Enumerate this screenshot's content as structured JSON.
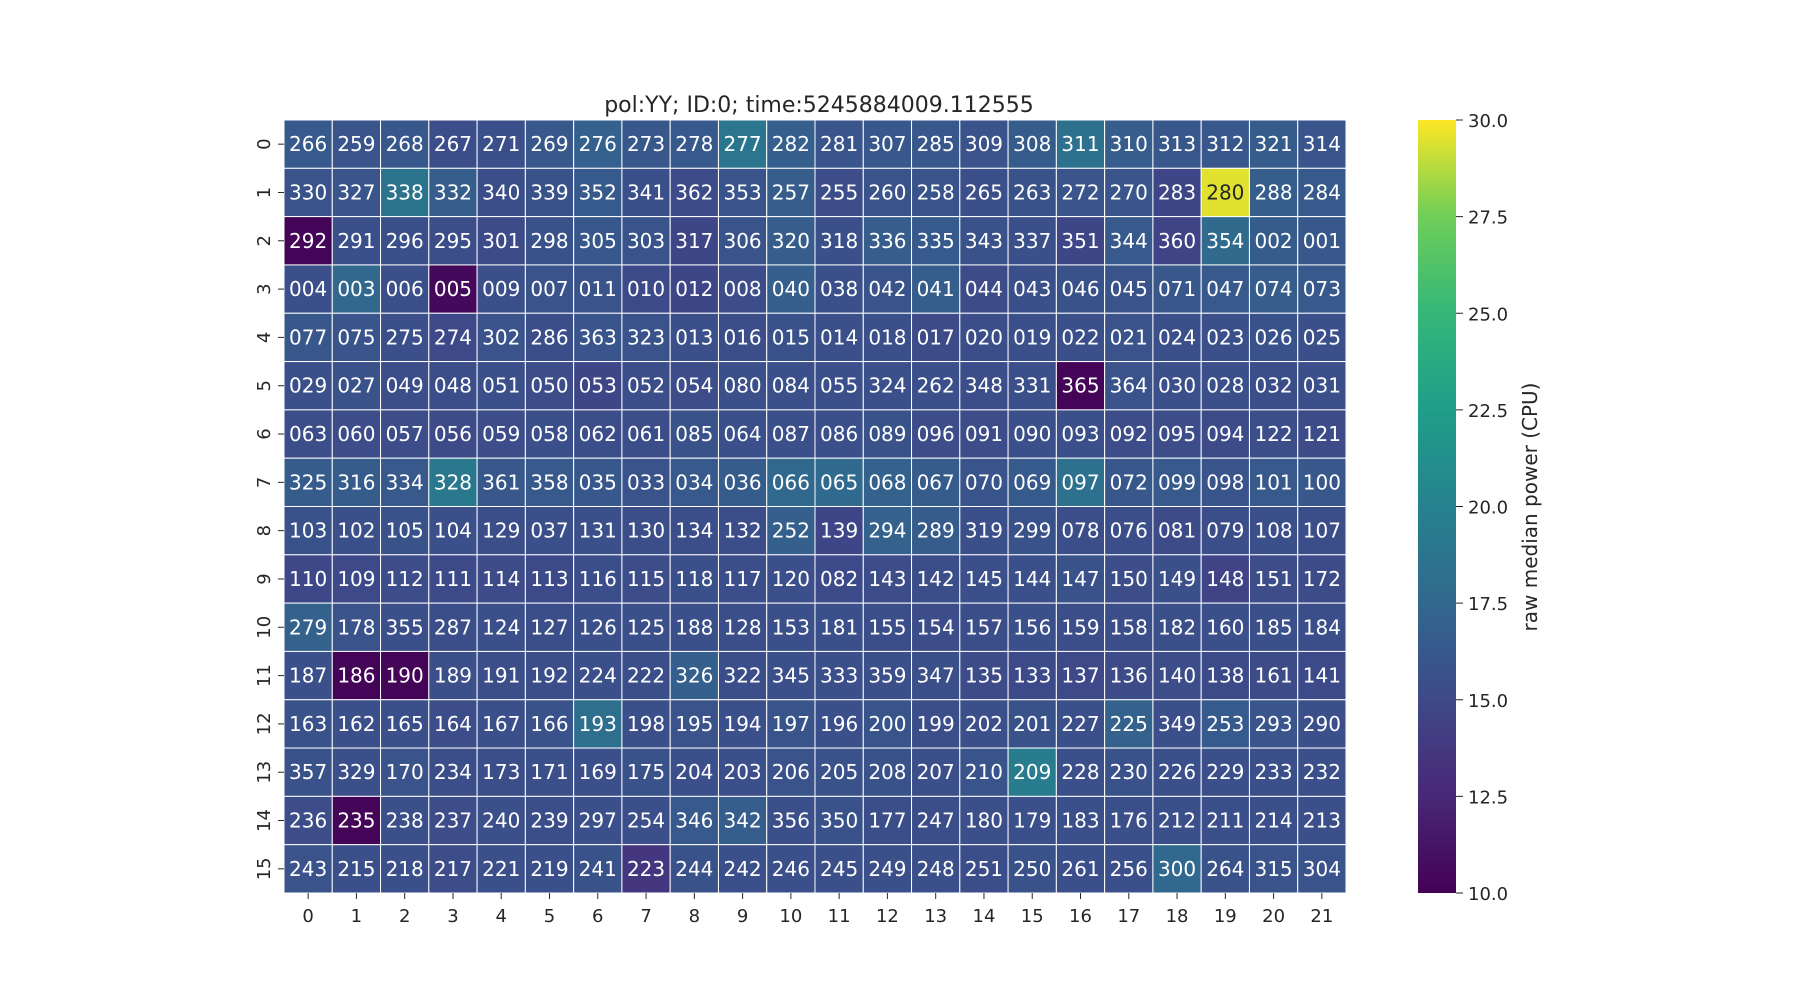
{
  "chart_data": {
    "type": "heatmap",
    "title": "pol:YY; ID:0; time:5245884009.112555",
    "colorbar_label": "raw median power (CPU)",
    "colormap": "viridis",
    "vmin": 10.0,
    "vmax": 30.0,
    "colorbar_ticks": [
      "10.0",
      "12.5",
      "15.0",
      "17.5",
      "20.0",
      "22.5",
      "25.0",
      "27.5",
      "30.0"
    ],
    "x_ticks": [
      "0",
      "1",
      "2",
      "3",
      "4",
      "5",
      "6",
      "7",
      "8",
      "9",
      "10",
      "11",
      "12",
      "13",
      "14",
      "15",
      "16",
      "17",
      "18",
      "19",
      "20",
      "21"
    ],
    "y_ticks": [
      "0",
      "1",
      "2",
      "3",
      "4",
      "5",
      "6",
      "7",
      "8",
      "9",
      "10",
      "11",
      "12",
      "13",
      "14",
      "15"
    ],
    "annotations": [
      [
        "266",
        "259",
        "268",
        "267",
        "271",
        "269",
        "276",
        "273",
        "278",
        "277",
        "282",
        "281",
        "307",
        "285",
        "309",
        "308",
        "311",
        "310",
        "313",
        "312",
        "321",
        "314"
      ],
      [
        "330",
        "327",
        "338",
        "332",
        "340",
        "339",
        "352",
        "341",
        "362",
        "353",
        "257",
        "255",
        "260",
        "258",
        "265",
        "263",
        "272",
        "270",
        "283",
        "280",
        "288",
        "284"
      ],
      [
        "292",
        "291",
        "296",
        "295",
        "301",
        "298",
        "305",
        "303",
        "317",
        "306",
        "320",
        "318",
        "336",
        "335",
        "343",
        "337",
        "351",
        "344",
        "360",
        "354",
        "002",
        "001"
      ],
      [
        "004",
        "003",
        "006",
        "005",
        "009",
        "007",
        "011",
        "010",
        "012",
        "008",
        "040",
        "038",
        "042",
        "041",
        "044",
        "043",
        "046",
        "045",
        "071",
        "047",
        "074",
        "073"
      ],
      [
        "077",
        "075",
        "275",
        "274",
        "302",
        "286",
        "363",
        "323",
        "013",
        "016",
        "015",
        "014",
        "018",
        "017",
        "020",
        "019",
        "022",
        "021",
        "024",
        "023",
        "026",
        "025"
      ],
      [
        "029",
        "027",
        "049",
        "048",
        "051",
        "050",
        "053",
        "052",
        "054",
        "080",
        "084",
        "055",
        "324",
        "262",
        "348",
        "331",
        "365",
        "364",
        "030",
        "028",
        "032",
        "031"
      ],
      [
        "063",
        "060",
        "057",
        "056",
        "059",
        "058",
        "062",
        "061",
        "085",
        "064",
        "087",
        "086",
        "089",
        "096",
        "091",
        "090",
        "093",
        "092",
        "095",
        "094",
        "122",
        "121"
      ],
      [
        "325",
        "316",
        "334",
        "328",
        "361",
        "358",
        "035",
        "033",
        "034",
        "036",
        "066",
        "065",
        "068",
        "067",
        "070",
        "069",
        "097",
        "072",
        "099",
        "098",
        "101",
        "100"
      ],
      [
        "103",
        "102",
        "105",
        "104",
        "129",
        "037",
        "131",
        "130",
        "134",
        "132",
        "252",
        "139",
        "294",
        "289",
        "319",
        "299",
        "078",
        "076",
        "081",
        "079",
        "108",
        "107"
      ],
      [
        "110",
        "109",
        "112",
        "111",
        "114",
        "113",
        "116",
        "115",
        "118",
        "117",
        "120",
        "082",
        "143",
        "142",
        "145",
        "144",
        "147",
        "150",
        "149",
        "148",
        "151",
        "172"
      ],
      [
        "279",
        "178",
        "355",
        "287",
        "124",
        "127",
        "126",
        "125",
        "188",
        "128",
        "153",
        "181",
        "155",
        "154",
        "157",
        "156",
        "159",
        "158",
        "182",
        "160",
        "185",
        "184"
      ],
      [
        "187",
        "186",
        "190",
        "189",
        "191",
        "192",
        "224",
        "222",
        "326",
        "322",
        "345",
        "333",
        "359",
        "347",
        "135",
        "133",
        "137",
        "136",
        "140",
        "138",
        "161",
        "141"
      ],
      [
        "163",
        "162",
        "165",
        "164",
        "167",
        "166",
        "193",
        "198",
        "195",
        "194",
        "197",
        "196",
        "200",
        "199",
        "202",
        "201",
        "227",
        "225",
        "349",
        "253",
        "293",
        "290"
      ],
      [
        "357",
        "329",
        "170",
        "234",
        "173",
        "171",
        "169",
        "175",
        "204",
        "203",
        "206",
        "205",
        "208",
        "207",
        "210",
        "209",
        "228",
        "230",
        "226",
        "229",
        "233",
        "232"
      ],
      [
        "236",
        "235",
        "238",
        "237",
        "240",
        "239",
        "297",
        "254",
        "346",
        "342",
        "356",
        "350",
        "177",
        "247",
        "180",
        "179",
        "183",
        "176",
        "212",
        "211",
        "214",
        "213"
      ],
      [
        "243",
        "215",
        "218",
        "217",
        "221",
        "219",
        "241",
        "223",
        "244",
        "242",
        "246",
        "245",
        "249",
        "248",
        "251",
        "250",
        "261",
        "256",
        "300",
        "264",
        "315",
        "304"
      ]
    ],
    "values": [
      [
        16.3,
        16.0,
        16.1,
        15.4,
        15.6,
        16.2,
        16.9,
        16.1,
        16.3,
        18.8,
        16.8,
        16.0,
        16.1,
        16.2,
        15.8,
        16.5,
        18.4,
        16.6,
        16.1,
        16.2,
        16.5,
        16.0
      ],
      [
        15.8,
        16.0,
        18.7,
        16.6,
        15.4,
        15.7,
        16.4,
        15.5,
        15.2,
        15.9,
        16.6,
        15.3,
        15.8,
        15.9,
        15.6,
        15.7,
        16.0,
        16.0,
        14.8,
        29.5,
        16.7,
        16.3
      ],
      [
        10.2,
        15.6,
        15.5,
        15.4,
        15.2,
        15.7,
        16.1,
        15.9,
        14.8,
        15.9,
        16.6,
        15.6,
        16.6,
        16.4,
        15.7,
        15.6,
        14.8,
        16.3,
        14.6,
        17.8,
        16.5,
        16.2
      ],
      [
        15.6,
        17.4,
        15.5,
        10.5,
        15.6,
        15.8,
        15.8,
        15.1,
        14.8,
        15.3,
        16.8,
        15.6,
        15.9,
        16.7,
        15.2,
        15.5,
        15.7,
        15.8,
        16.2,
        16.3,
        16.6,
        16.3
      ],
      [
        16.2,
        16.0,
        15.5,
        15.0,
        15.8,
        15.4,
        16.0,
        15.8,
        15.5,
        15.4,
        15.7,
        15.6,
        15.5,
        15.2,
        15.4,
        15.6,
        15.5,
        15.8,
        15.6,
        15.6,
        15.7,
        15.5
      ],
      [
        15.6,
        15.7,
        15.4,
        15.4,
        15.5,
        15.3,
        14.8,
        15.4,
        15.3,
        15.5,
        15.6,
        15.5,
        15.6,
        15.6,
        15.4,
        15.5,
        10.2,
        15.8,
        15.5,
        15.6,
        15.4,
        15.5
      ],
      [
        15.4,
        15.3,
        15.3,
        15.2,
        15.3,
        15.6,
        15.4,
        15.4,
        15.7,
        15.6,
        15.5,
        15.5,
        15.7,
        15.3,
        15.3,
        15.5,
        15.5,
        15.3,
        15.3,
        15.2,
        15.4,
        15.2
      ],
      [
        16.5,
        16.5,
        16.3,
        19.0,
        16.2,
        16.3,
        16.2,
        15.8,
        16.3,
        16.5,
        17.5,
        17.7,
        17.0,
        16.5,
        15.9,
        16.4,
        18.4,
        16.2,
        16.3,
        15.9,
        16.3,
        16.1
      ],
      [
        15.7,
        15.6,
        15.7,
        15.5,
        15.4,
        15.5,
        15.6,
        15.4,
        15.4,
        15.4,
        16.8,
        14.8,
        17.0,
        16.5,
        15.6,
        15.7,
        15.4,
        15.4,
        15.2,
        15.4,
        15.5,
        15.4
      ],
      [
        14.9,
        15.0,
        15.3,
        15.1,
        15.2,
        15.1,
        15.4,
        15.3,
        15.5,
        15.4,
        15.5,
        15.1,
        15.3,
        15.4,
        15.5,
        15.6,
        15.7,
        15.3,
        15.5,
        14.6,
        15.3,
        15.2
      ],
      [
        17.0,
        15.8,
        15.6,
        15.4,
        15.5,
        15.4,
        15.6,
        15.5,
        15.5,
        15.4,
        15.6,
        15.5,
        15.4,
        15.3,
        15.4,
        15.5,
        15.4,
        15.4,
        15.5,
        15.5,
        15.5,
        15.4
      ],
      [
        15.6,
        10.2,
        10.2,
        15.5,
        15.4,
        15.4,
        15.6,
        15.4,
        16.8,
        15.4,
        15.6,
        15.5,
        15.6,
        15.5,
        15.2,
        15.1,
        15.0,
        15.2,
        15.3,
        15.1,
        15.2,
        15.1
      ],
      [
        15.7,
        15.6,
        15.5,
        15.3,
        15.5,
        15.7,
        18.2,
        15.6,
        15.8,
        15.5,
        15.9,
        15.6,
        15.9,
        15.4,
        15.6,
        15.7,
        15.6,
        17.0,
        15.5,
        16.4,
        16.0,
        15.5
      ],
      [
        15.7,
        15.6,
        15.8,
        15.4,
        15.4,
        15.6,
        15.5,
        15.7,
        15.5,
        15.6,
        15.8,
        15.7,
        15.7,
        15.6,
        15.9,
        19.4,
        15.6,
        15.7,
        15.6,
        15.6,
        15.6,
        15.6
      ],
      [
        15.3,
        10.2,
        15.5,
        15.3,
        15.5,
        15.4,
        15.6,
        15.5,
        16.3,
        16.7,
        15.5,
        15.7,
        15.4,
        15.4,
        15.5,
        15.5,
        15.5,
        15.5,
        15.5,
        15.5,
        15.6,
        15.5
      ],
      [
        15.8,
        15.6,
        15.5,
        15.3,
        15.5,
        15.5,
        15.7,
        13.6,
        15.7,
        15.6,
        15.6,
        15.6,
        15.5,
        15.6,
        15.4,
        15.7,
        15.6,
        15.6,
        17.6,
        15.7,
        15.8,
        15.8
      ]
    ]
  }
}
